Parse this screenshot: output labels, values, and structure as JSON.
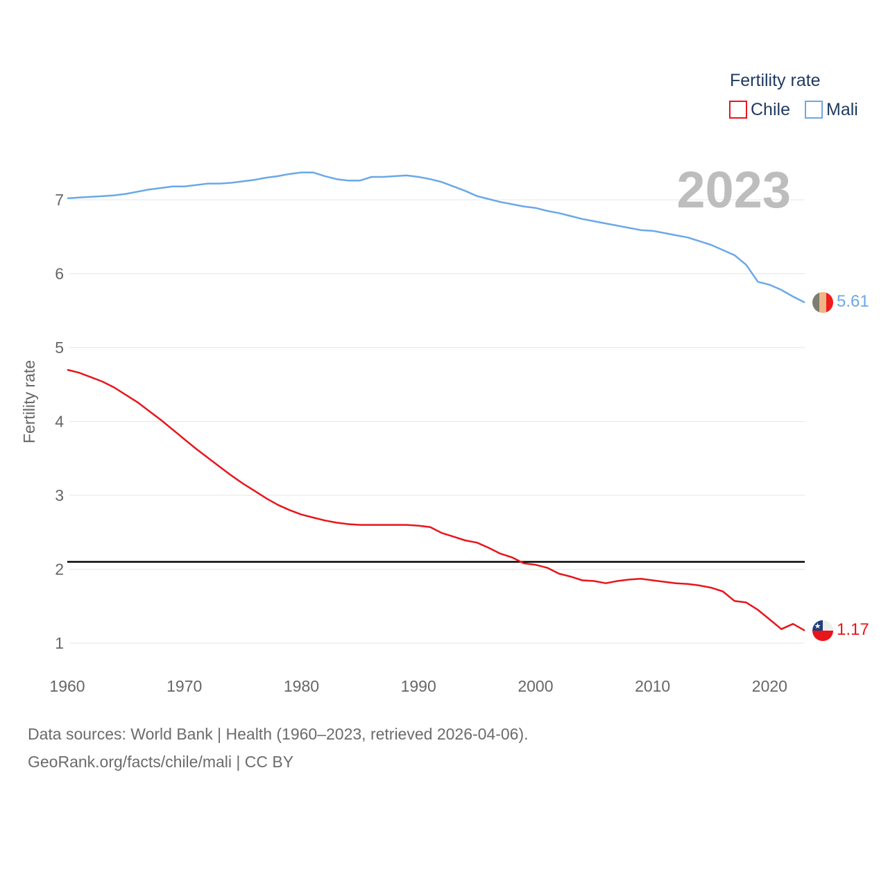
{
  "chart_data": {
    "type": "line",
    "title": "Fertility rate",
    "ylabel": "Fertility rate",
    "xlabel": "",
    "xlim": [
      1960,
      2023
    ],
    "ylim": [
      0.7,
      7.6
    ],
    "yticks": [
      1,
      2,
      3,
      4,
      5,
      6,
      7
    ],
    "xticks": [
      1960,
      1970,
      1980,
      1990,
      2000,
      2010,
      2020
    ],
    "legend": {
      "title": "Fertility rate",
      "position": "top-right"
    },
    "current_year": "2023",
    "reference_line": {
      "value": 2.1,
      "color": "#000000"
    },
    "x": [
      1960,
      1961,
      1962,
      1963,
      1964,
      1965,
      1966,
      1967,
      1968,
      1969,
      1970,
      1971,
      1972,
      1973,
      1974,
      1975,
      1976,
      1977,
      1978,
      1979,
      1980,
      1981,
      1982,
      1983,
      1984,
      1985,
      1986,
      1987,
      1988,
      1989,
      1990,
      1991,
      1992,
      1993,
      1994,
      1995,
      1996,
      1997,
      1998,
      1999,
      2000,
      2001,
      2002,
      2003,
      2004,
      2005,
      2006,
      2007,
      2008,
      2009,
      2010,
      2011,
      2012,
      2013,
      2014,
      2015,
      2016,
      2017,
      2018,
      2019,
      2020,
      2021,
      2022,
      2023
    ],
    "series": [
      {
        "name": "Chile",
        "color": "#e8151b",
        "end_label": "1.17",
        "values": [
          4.7,
          4.66,
          4.6,
          4.54,
          4.46,
          4.36,
          4.26,
          4.14,
          4.02,
          3.89,
          3.76,
          3.63,
          3.51,
          3.39,
          3.27,
          3.16,
          3.06,
          2.96,
          2.87,
          2.8,
          2.74,
          2.7,
          2.66,
          2.63,
          2.61,
          2.6,
          2.6,
          2.6,
          2.6,
          2.6,
          2.59,
          2.57,
          2.49,
          2.44,
          2.39,
          2.36,
          2.29,
          2.21,
          2.16,
          2.08,
          2.06,
          2.02,
          1.94,
          1.9,
          1.85,
          1.84,
          1.81,
          1.84,
          1.86,
          1.87,
          1.85,
          1.83,
          1.81,
          1.8,
          1.78,
          1.75,
          1.7,
          1.57,
          1.55,
          1.45,
          1.32,
          1.19,
          1.26,
          1.17
        ]
      },
      {
        "name": "Mali",
        "color": "#6aa8e8",
        "end_label": "5.61",
        "values": [
          7.02,
          7.03,
          7.04,
          7.05,
          7.06,
          7.08,
          7.11,
          7.14,
          7.16,
          7.18,
          7.18,
          7.2,
          7.22,
          7.22,
          7.23,
          7.25,
          7.27,
          7.3,
          7.32,
          7.35,
          7.37,
          7.37,
          7.32,
          7.28,
          7.26,
          7.26,
          7.31,
          7.31,
          7.32,
          7.33,
          7.31,
          7.28,
          7.24,
          7.18,
          7.12,
          7.05,
          7.01,
          6.97,
          6.94,
          6.91,
          6.89,
          6.85,
          6.82,
          6.78,
          6.74,
          6.71,
          6.68,
          6.65,
          6.62,
          6.59,
          6.58,
          6.55,
          6.52,
          6.49,
          6.44,
          6.39,
          6.32,
          6.25,
          6.12,
          5.89,
          5.85,
          5.78,
          5.69,
          5.61
        ]
      }
    ]
  },
  "footer": {
    "source_line": "Data sources: World Bank | Health (1960–2023, retrieved 2026-04-06).",
    "credit_line": "GeoRank.org/facts/chile/mali | CC BY"
  },
  "colors": {
    "grid": "#e6e6e6",
    "tick_text": "#666666",
    "legend_text": "#1f3a5f",
    "year_watermark": "#bdbdbd"
  }
}
